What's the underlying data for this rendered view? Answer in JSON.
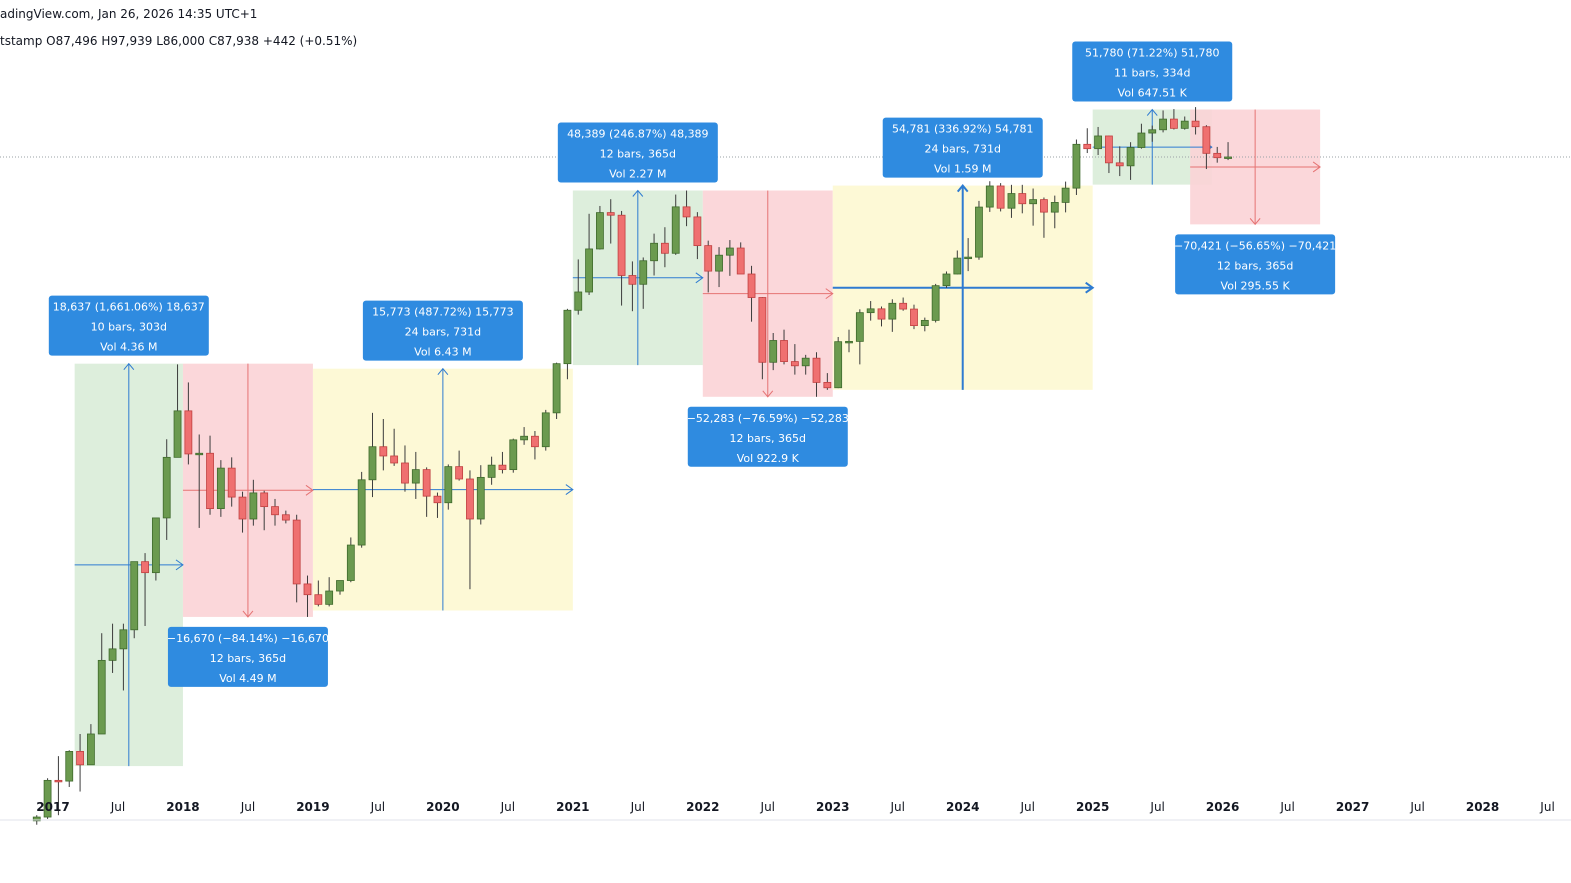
{
  "header": {
    "source_line": "adingView.com, Jan 26, 2026 14:35 UTC+1",
    "ohlc_line": "tstamp  O87,496  H97,939  L86,000  C87,938  +442 (+0.51%)"
  },
  "colors": {
    "up_body": "#6b9a4f",
    "down_body": "#ef7070",
    "zone_green": "#d9ecd8",
    "zone_red": "#fbd3d6",
    "zone_yellow": "#fdf8d2",
    "measure_line": "#2e7bd1",
    "label_box": "#2f8be0",
    "label_box_dark": "#1f6fc7",
    "grid_dotted": "#9aa0a6"
  },
  "chart_data": {
    "type": "candlestick",
    "title": "",
    "x_axis": {
      "ticks": [
        "2017",
        "Jul",
        "2018",
        "Jul",
        "2019",
        "Jul",
        "2020",
        "Jul",
        "2021",
        "Jul",
        "2022",
        "Jul",
        "2023",
        "Jul",
        "2024",
        "Jul",
        "2025",
        "Jul",
        "2026",
        "Jul",
        "2027",
        "Jul",
        "2028",
        "Jul"
      ]
    },
    "y_scale": "log",
    "y_range": [
      900,
      130000
    ],
    "candles": [
      {
        "t": "2016-11",
        "o": 720,
        "h": 750,
        "l": 700,
        "c": 740
      },
      {
        "t": "2016-12",
        "o": 740,
        "h": 980,
        "l": 730,
        "c": 965
      },
      {
        "t": "2017-01",
        "o": 965,
        "h": 1150,
        "l": 750,
        "c": 960
      },
      {
        "t": "2017-02",
        "o": 960,
        "h": 1200,
        "l": 920,
        "c": 1190
      },
      {
        "t": "2017-03",
        "o": 1190,
        "h": 1350,
        "l": 890,
        "c": 1080
      },
      {
        "t": "2017-04",
        "o": 1080,
        "h": 1450,
        "l": 1080,
        "c": 1350
      },
      {
        "t": "2017-05",
        "o": 1350,
        "h": 2800,
        "l": 1350,
        "c": 2300
      },
      {
        "t": "2017-06",
        "o": 2300,
        "h": 3000,
        "l": 2100,
        "c": 2500
      },
      {
        "t": "2017-07",
        "o": 2500,
        "h": 3000,
        "l": 1850,
        "c": 2870
      },
      {
        "t": "2017-08",
        "o": 2870,
        "h": 4700,
        "l": 2700,
        "c": 4700
      },
      {
        "t": "2017-09",
        "o": 4700,
        "h": 5000,
        "l": 2950,
        "c": 4340
      },
      {
        "t": "2017-10",
        "o": 4340,
        "h": 6400,
        "l": 4100,
        "c": 6450
      },
      {
        "t": "2017-11",
        "o": 6450,
        "h": 11400,
        "l": 5500,
        "c": 10000
      },
      {
        "t": "2017-12",
        "o": 10000,
        "h": 19600,
        "l": 10800,
        "c": 14000
      },
      {
        "t": "2018-01",
        "o": 14000,
        "h": 17200,
        "l": 9500,
        "c": 10250
      },
      {
        "t": "2018-02",
        "o": 10250,
        "h": 11800,
        "l": 6000,
        "c": 10300
      },
      {
        "t": "2018-03",
        "o": 10300,
        "h": 11700,
        "l": 6600,
        "c": 6900
      },
      {
        "t": "2018-04",
        "o": 6900,
        "h": 9800,
        "l": 6500,
        "c": 9250
      },
      {
        "t": "2018-05",
        "o": 9250,
        "h": 10000,
        "l": 7000,
        "c": 7500
      },
      {
        "t": "2018-06",
        "o": 7500,
        "h": 7800,
        "l": 5800,
        "c": 6400
      },
      {
        "t": "2018-07",
        "o": 6400,
        "h": 8500,
        "l": 6100,
        "c": 7730
      },
      {
        "t": "2018-08",
        "o": 7730,
        "h": 7850,
        "l": 5900,
        "c": 7000
      },
      {
        "t": "2018-09",
        "o": 7000,
        "h": 7400,
        "l": 6100,
        "c": 6600
      },
      {
        "t": "2018-10",
        "o": 6600,
        "h": 6800,
        "l": 6200,
        "c": 6350
      },
      {
        "t": "2018-11",
        "o": 6350,
        "h": 6600,
        "l": 3500,
        "c": 4000
      },
      {
        "t": "2018-12",
        "o": 4000,
        "h": 4250,
        "l": 3150,
        "c": 3700
      },
      {
        "t": "2019-01",
        "o": 3700,
        "h": 4100,
        "l": 3400,
        "c": 3450
      },
      {
        "t": "2019-02",
        "o": 3450,
        "h": 4200,
        "l": 3400,
        "c": 3800
      },
      {
        "t": "2019-03",
        "o": 3800,
        "h": 4100,
        "l": 3700,
        "c": 4100
      },
      {
        "t": "2019-04",
        "o": 4100,
        "h": 5600,
        "l": 4050,
        "c": 5300
      },
      {
        "t": "2019-05",
        "o": 5300,
        "h": 9000,
        "l": 5200,
        "c": 8500
      },
      {
        "t": "2019-06",
        "o": 8500,
        "h": 13800,
        "l": 7500,
        "c": 10800
      },
      {
        "t": "2019-07",
        "o": 10800,
        "h": 13200,
        "l": 9100,
        "c": 10100
      },
      {
        "t": "2019-08",
        "o": 10100,
        "h": 12300,
        "l": 9400,
        "c": 9600
      },
      {
        "t": "2019-09",
        "o": 9600,
        "h": 10900,
        "l": 7800,
        "c": 8300
      },
      {
        "t": "2019-10",
        "o": 8300,
        "h": 10400,
        "l": 7400,
        "c": 9150
      },
      {
        "t": "2019-11",
        "o": 9150,
        "h": 9300,
        "l": 6500,
        "c": 7550
      },
      {
        "t": "2019-12",
        "o": 7550,
        "h": 7750,
        "l": 6450,
        "c": 7200
      },
      {
        "t": "2020-01",
        "o": 7200,
        "h": 9500,
        "l": 6850,
        "c": 9350
      },
      {
        "t": "2020-02",
        "o": 9350,
        "h": 10500,
        "l": 8450,
        "c": 8550
      },
      {
        "t": "2020-03",
        "o": 8550,
        "h": 9100,
        "l": 3850,
        "c": 6400
      },
      {
        "t": "2020-04",
        "o": 6400,
        "h": 9450,
        "l": 6150,
        "c": 8650
      },
      {
        "t": "2020-05",
        "o": 8650,
        "h": 10050,
        "l": 8200,
        "c": 9450
      },
      {
        "t": "2020-06",
        "o": 9450,
        "h": 10400,
        "l": 8900,
        "c": 9150
      },
      {
        "t": "2020-07",
        "o": 9150,
        "h": 11450,
        "l": 8950,
        "c": 11350
      },
      {
        "t": "2020-08",
        "o": 11350,
        "h": 12450,
        "l": 10950,
        "c": 11650
      },
      {
        "t": "2020-09",
        "o": 11650,
        "h": 12100,
        "l": 9850,
        "c": 10800
      },
      {
        "t": "2020-10",
        "o": 10800,
        "h": 14100,
        "l": 10500,
        "c": 13800
      },
      {
        "t": "2020-11",
        "o": 13800,
        "h": 19850,
        "l": 13200,
        "c": 19700
      },
      {
        "t": "2020-12",
        "o": 19700,
        "h": 29300,
        "l": 17600,
        "c": 29000
      },
      {
        "t": "2021-01",
        "o": 29000,
        "h": 41900,
        "l": 28100,
        "c": 33100
      },
      {
        "t": "2021-02",
        "o": 33100,
        "h": 58300,
        "l": 32400,
        "c": 45200
      },
      {
        "t": "2021-03",
        "o": 45200,
        "h": 61700,
        "l": 45000,
        "c": 58800
      },
      {
        "t": "2021-04",
        "o": 58800,
        "h": 64800,
        "l": 47000,
        "c": 57700
      },
      {
        "t": "2021-05",
        "o": 57700,
        "h": 59500,
        "l": 30000,
        "c": 37300
      },
      {
        "t": "2021-06",
        "o": 37300,
        "h": 41300,
        "l": 28800,
        "c": 35000
      },
      {
        "t": "2021-07",
        "o": 35000,
        "h": 42500,
        "l": 29300,
        "c": 41500
      },
      {
        "t": "2021-08",
        "o": 41500,
        "h": 50500,
        "l": 37300,
        "c": 47100
      },
      {
        "t": "2021-09",
        "o": 47100,
        "h": 52900,
        "l": 39600,
        "c": 43800
      },
      {
        "t": "2021-10",
        "o": 43800,
        "h": 67000,
        "l": 43300,
        "c": 61300
      },
      {
        "t": "2021-11",
        "o": 61300,
        "h": 69000,
        "l": 53300,
        "c": 57000
      },
      {
        "t": "2021-12",
        "o": 57000,
        "h": 59000,
        "l": 42000,
        "c": 46300
      },
      {
        "t": "2022-01",
        "o": 46300,
        "h": 48000,
        "l": 33000,
        "c": 38500
      },
      {
        "t": "2022-02",
        "o": 38500,
        "h": 45800,
        "l": 34300,
        "c": 43200
      },
      {
        "t": "2022-03",
        "o": 43200,
        "h": 48200,
        "l": 37200,
        "c": 45500
      },
      {
        "t": "2022-04",
        "o": 45500,
        "h": 47400,
        "l": 37700,
        "c": 37700
      },
      {
        "t": "2022-05",
        "o": 37700,
        "h": 40000,
        "l": 26700,
        "c": 31800
      },
      {
        "t": "2022-06",
        "o": 31800,
        "h": 31900,
        "l": 17600,
        "c": 19900
      },
      {
        "t": "2022-07",
        "o": 19900,
        "h": 24600,
        "l": 18800,
        "c": 23300
      },
      {
        "t": "2022-08",
        "o": 23300,
        "h": 25200,
        "l": 19600,
        "c": 20000
      },
      {
        "t": "2022-09",
        "o": 20000,
        "h": 22700,
        "l": 18200,
        "c": 19400
      },
      {
        "t": "2022-10",
        "o": 19400,
        "h": 21000,
        "l": 18200,
        "c": 20500
      },
      {
        "t": "2022-11",
        "o": 20500,
        "h": 21400,
        "l": 15500,
        "c": 17200
      },
      {
        "t": "2022-12",
        "o": 17200,
        "h": 18400,
        "l": 16300,
        "c": 16550
      },
      {
        "t": "2023-01",
        "o": 16550,
        "h": 23900,
        "l": 16500,
        "c": 23100
      },
      {
        "t": "2023-02",
        "o": 23100,
        "h": 25200,
        "l": 21400,
        "c": 23150
      },
      {
        "t": "2023-03",
        "o": 23150,
        "h": 29200,
        "l": 19600,
        "c": 28500
      },
      {
        "t": "2023-04",
        "o": 28500,
        "h": 31000,
        "l": 26900,
        "c": 29300
      },
      {
        "t": "2023-05",
        "o": 29300,
        "h": 29800,
        "l": 25800,
        "c": 27200
      },
      {
        "t": "2023-06",
        "o": 27200,
        "h": 31400,
        "l": 24800,
        "c": 30500
      },
      {
        "t": "2023-07",
        "o": 30500,
        "h": 31800,
        "l": 28900,
        "c": 29250
      },
      {
        "t": "2023-08",
        "o": 29250,
        "h": 30200,
        "l": 25300,
        "c": 25950
      },
      {
        "t": "2023-09",
        "o": 25950,
        "h": 27500,
        "l": 24900,
        "c": 26950
      },
      {
        "t": "2023-10",
        "o": 26950,
        "h": 35100,
        "l": 26550,
        "c": 34650
      },
      {
        "t": "2023-11",
        "o": 34650,
        "h": 38400,
        "l": 34100,
        "c": 37700
      },
      {
        "t": "2023-12",
        "o": 37700,
        "h": 44700,
        "l": 37600,
        "c": 42300
      },
      {
        "t": "2024-01",
        "o": 42300,
        "h": 48900,
        "l": 38500,
        "c": 42600
      },
      {
        "t": "2024-02",
        "o": 42600,
        "h": 64000,
        "l": 41800,
        "c": 61200
      },
      {
        "t": "2024-03",
        "o": 61200,
        "h": 73800,
        "l": 59100,
        "c": 71300
      },
      {
        "t": "2024-04",
        "o": 71300,
        "h": 72800,
        "l": 59300,
        "c": 60700
      },
      {
        "t": "2024-05",
        "o": 60700,
        "h": 71900,
        "l": 56600,
        "c": 67500
      },
      {
        "t": "2024-06",
        "o": 67500,
        "h": 71900,
        "l": 58500,
        "c": 62700
      },
      {
        "t": "2024-07",
        "o": 62700,
        "h": 70000,
        "l": 53500,
        "c": 64600
      },
      {
        "t": "2024-08",
        "o": 64600,
        "h": 65600,
        "l": 49000,
        "c": 59000
      },
      {
        "t": "2024-09",
        "o": 59000,
        "h": 66500,
        "l": 52500,
        "c": 63300
      },
      {
        "t": "2024-10",
        "o": 63300,
        "h": 73600,
        "l": 58900,
        "c": 70200
      },
      {
        "t": "2024-11",
        "o": 70200,
        "h": 99800,
        "l": 66800,
        "c": 96400
      },
      {
        "t": "2024-12",
        "o": 96400,
        "h": 108300,
        "l": 90500,
        "c": 93400
      },
      {
        "t": "2025-01",
        "o": 93400,
        "h": 109300,
        "l": 89200,
        "c": 102400
      },
      {
        "t": "2025-02",
        "o": 102400,
        "h": 102700,
        "l": 78300,
        "c": 84300
      },
      {
        "t": "2025-03",
        "o": 84300,
        "h": 95000,
        "l": 76600,
        "c": 82500
      },
      {
        "t": "2025-04",
        "o": 82500,
        "h": 97900,
        "l": 74500,
        "c": 94200
      },
      {
        "t": "2025-05",
        "o": 94200,
        "h": 111900,
        "l": 93400,
        "c": 104600
      },
      {
        "t": "2025-06",
        "o": 104600,
        "h": 110400,
        "l": 98200,
        "c": 107100
      },
      {
        "t": "2025-07",
        "o": 107100,
        "h": 123200,
        "l": 105100,
        "c": 115700
      },
      {
        "t": "2025-08",
        "o": 115700,
        "h": 124400,
        "l": 107300,
        "c": 108200
      },
      {
        "t": "2025-09",
        "o": 108200,
        "h": 117900,
        "l": 107200,
        "c": 114000
      },
      {
        "t": "2025-10",
        "o": 114000,
        "h": 126200,
        "l": 103500,
        "c": 109500
      },
      {
        "t": "2025-11",
        "o": 109500,
        "h": 110700,
        "l": 80600,
        "c": 90300
      },
      {
        "t": "2025-12",
        "o": 90300,
        "h": 94600,
        "l": 84400,
        "c": 87500
      },
      {
        "t": "2026-01",
        "o": 87496,
        "h": 97939,
        "l": 86000,
        "c": 87938
      }
    ],
    "measurements": [
      {
        "id": "m1",
        "kind": "up",
        "from": "2017-03",
        "to": "2018-01",
        "low": 1070,
        "high": 19700,
        "lines": [
          "18,637 (1,661.06%) 18,637",
          "10 bars, 303d",
          "Vol 4.36 M"
        ]
      },
      {
        "id": "m2",
        "kind": "down",
        "from": "2018-01",
        "to": "2019-01",
        "low": 3150,
        "high": 19700,
        "lines": [
          "−16,670 (−84.14%) −16,670",
          "12 bars, 365d",
          "Vol 4.49 M"
        ]
      },
      {
        "id": "m3",
        "kind": "range",
        "from": "2019-01",
        "to": "2021-01",
        "low": 3300,
        "high": 19000,
        "lines": [
          "15,773 (487.72%) 15,773",
          "24 bars, 731d",
          "Vol 6.43 M"
        ]
      },
      {
        "id": "m4",
        "kind": "up",
        "from": "2021-01",
        "to": "2022-01",
        "low": 19500,
        "high": 69000,
        "lines": [
          "48,389 (246.87%) 48,389",
          "12 bars, 365d",
          "Vol 2.27 M"
        ]
      },
      {
        "id": "m5",
        "kind": "down",
        "from": "2022-01",
        "to": "2023-01",
        "low": 15500,
        "high": 69000,
        "lines": [
          "−52,283 (−76.59%) −52,283",
          "12 bars, 365d",
          "Vol 922.9 K"
        ]
      },
      {
        "id": "m6",
        "kind": "range",
        "from": "2023-01",
        "to": "2025-01",
        "low": 16300,
        "high": 71500,
        "lines": [
          "54,781 (336.92%) 54,781",
          "24 bars, 731d",
          "Vol 1.59 M"
        ]
      },
      {
        "id": "m7",
        "kind": "up",
        "from": "2025-01",
        "to": "2025-12",
        "low": 72000,
        "high": 124000,
        "lines": [
          "51,780 (71.22%) 51,780",
          "11 bars, 334d",
          "Vol 647.51 K"
        ]
      },
      {
        "id": "m8",
        "kind": "down",
        "from": "2025-10",
        "to": "2026-10",
        "low": 54000,
        "high": 124000,
        "lines": [
          "−70,421 (−56.65%) −70,421",
          "12 bars, 365d",
          "Vol 295.55 K"
        ]
      }
    ],
    "price_line": 87938,
    "grid": false
  }
}
